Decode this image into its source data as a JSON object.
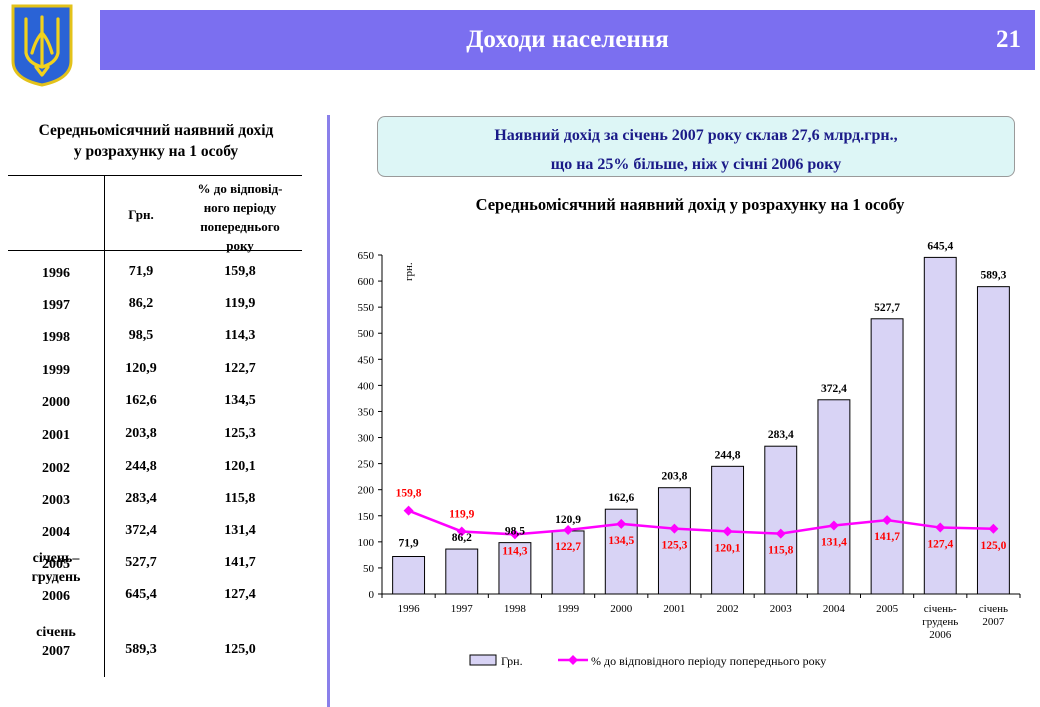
{
  "header": {
    "title": "Доходи населення",
    "page_number": "21"
  },
  "left_panel": {
    "title_line1": "Середньомісячний наявний дохід",
    "title_line2": "у розрахунку на 1 особу",
    "col_uah": "Грн.",
    "col_pct_lines": [
      "% до відповід-",
      "ного періоду",
      "попереднього",
      "року"
    ],
    "rows": [
      {
        "period": [
          "1996"
        ],
        "uah": "71,9",
        "pct": "159,8"
      },
      {
        "period": [
          "1997"
        ],
        "uah": "86,2",
        "pct": "119,9"
      },
      {
        "period": [
          "1998"
        ],
        "uah": "98,5",
        "pct": "114,3"
      },
      {
        "period": [
          "1999"
        ],
        "uah": "120,9",
        "pct": "122,7"
      },
      {
        "period": [
          "2000"
        ],
        "uah": "162,6",
        "pct": "134,5"
      },
      {
        "period": [
          "2001"
        ],
        "uah": "203,8",
        "pct": "125,3"
      },
      {
        "period": [
          "2002"
        ],
        "uah": "244,8",
        "pct": "120,1"
      },
      {
        "period": [
          "2003"
        ],
        "uah": "283,4",
        "pct": "115,8"
      },
      {
        "period": [
          "2004"
        ],
        "uah": "372,4",
        "pct": "131,4"
      },
      {
        "period": [
          "2005"
        ],
        "uah": "527,7",
        "pct": "141,7"
      },
      {
        "period": [
          "січень–",
          "грудень",
          "2006"
        ],
        "uah": "645,4",
        "pct": "127,4"
      },
      {
        "period": [
          "січень",
          "2007"
        ],
        "uah": "589,3",
        "pct": "125,0"
      }
    ]
  },
  "callout": {
    "line1": "Наявний дохід за січень 2007 року склав 27,6 млрд.грн.,",
    "line2": "що на 25% більше, ніж у січні 2006 року"
  },
  "chart_data": {
    "type": "bar",
    "title": "Середньомісячний наявний дохід у розрахунку на 1 особу",
    "ylabel": "грн.",
    "ylim": [
      0,
      650
    ],
    "yticks": [
      0,
      50,
      100,
      150,
      200,
      250,
      300,
      350,
      400,
      450,
      500,
      550,
      600,
      650
    ],
    "categories": [
      [
        "1996"
      ],
      [
        "1997"
      ],
      [
        "1998"
      ],
      [
        "1999"
      ],
      [
        "2000"
      ],
      [
        "2001"
      ],
      [
        "2002"
      ],
      [
        "2003"
      ],
      [
        "2004"
      ],
      [
        "2005"
      ],
      [
        "січень-",
        "грудень",
        "2006"
      ],
      [
        "січень",
        "2007"
      ]
    ],
    "series": [
      {
        "name": "Грн.",
        "kind": "bar",
        "color": "#d8d3f5",
        "values": [
          71.9,
          86.2,
          98.5,
          120.9,
          162.6,
          203.8,
          244.8,
          283.4,
          372.4,
          527.7,
          645.4,
          589.3
        ],
        "labels": [
          "71,9",
          "86,2",
          "98,5",
          "120,9",
          "162,6",
          "203,8",
          "244,8",
          "283,4",
          "372,4",
          "527,7",
          "645,4",
          "589,3"
        ]
      },
      {
        "name": "% до відповідного періоду попереднього року",
        "kind": "line",
        "color": "#ff00ff",
        "label_color": "#ff0000",
        "values": [
          159.8,
          119.9,
          114.3,
          122.7,
          134.5,
          125.3,
          120.1,
          115.8,
          131.4,
          141.7,
          127.4,
          125.0
        ],
        "labels": [
          "159,8",
          "119,9",
          "114,3",
          "122,7",
          "134,5",
          "125,3",
          "120,1",
          "115,8",
          "131,4",
          "141,7",
          "127,4",
          "125,0"
        ]
      }
    ],
    "legend": "bottom"
  }
}
